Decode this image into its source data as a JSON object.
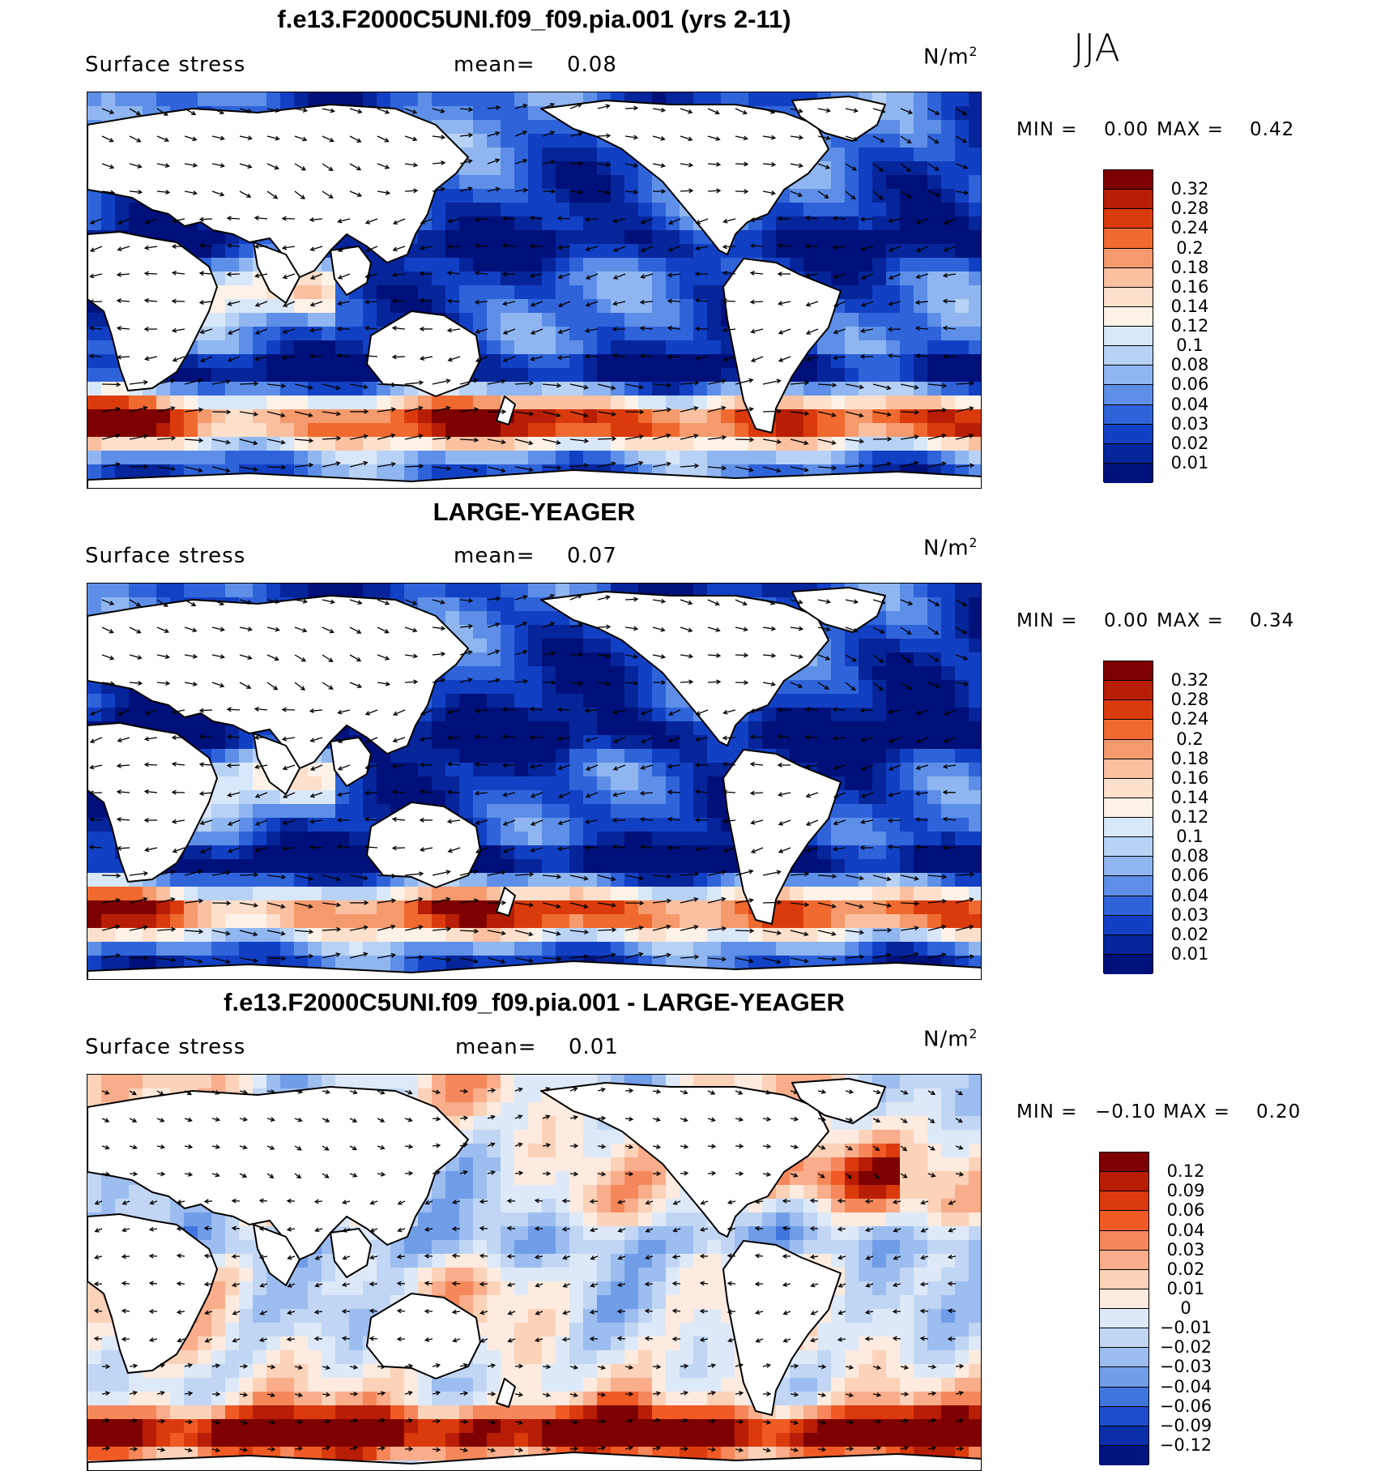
{
  "season": "JJA",
  "panels": [
    {
      "id": "top",
      "title": "f.e13.F2000C5UNI.f09_f09.pia.001 (yrs 2-11)",
      "variable": "Surface stress",
      "mean_label": "mean=",
      "mean_value": "0.08",
      "units_base": "N/m",
      "units_exp": "2",
      "min_label": "MIN =",
      "min_value": "0.00",
      "max_label": "MAX =",
      "max_value": "0.42",
      "colorbar": {
        "labels": [
          "0.32",
          "0.28",
          "0.24",
          "0.2",
          "0.18",
          "0.16",
          "0.14",
          "0.12",
          "0.1",
          "0.08",
          "0.06",
          "0.04",
          "0.03",
          "0.02",
          "0.01"
        ],
        "colors": [
          "#7f0000",
          "#b81e05",
          "#db3b0c",
          "#f06a2f",
          "#f59a6c",
          "#fac0a0",
          "#fde0cc",
          "#fdf2e8",
          "#d8e8fa",
          "#b8d2f5",
          "#8fb6f0",
          "#5e8fe8",
          "#2f63da",
          "#1240c4",
          "#06259a",
          "#00107a"
        ]
      },
      "map_style": "model"
    },
    {
      "id": "middle",
      "title": "LARGE-YEAGER",
      "variable": "Surface stress",
      "mean_label": "mean=",
      "mean_value": "0.07",
      "units_base": "N/m",
      "units_exp": "2",
      "min_label": "MIN =",
      "min_value": "0.00",
      "max_label": "MAX =",
      "max_value": "0.34",
      "colorbar": {
        "labels": [
          "0.32",
          "0.28",
          "0.24",
          "0.2",
          "0.18",
          "0.16",
          "0.14",
          "0.12",
          "0.1",
          "0.08",
          "0.06",
          "0.04",
          "0.03",
          "0.02",
          "0.01"
        ],
        "colors": [
          "#7f0000",
          "#b81e05",
          "#db3b0c",
          "#f06a2f",
          "#f59a6c",
          "#fac0a0",
          "#fde0cc",
          "#fdf2e8",
          "#d8e8fa",
          "#b8d2f5",
          "#8fb6f0",
          "#5e8fe8",
          "#2f63da",
          "#1240c4",
          "#06259a",
          "#00107a"
        ]
      },
      "map_style": "obs"
    },
    {
      "id": "bottom",
      "title": "f.e13.F2000C5UNI.f09_f09.pia.001 - LARGE-YEAGER",
      "variable": "Surface stress",
      "mean_label": "mean=",
      "mean_value": "0.01",
      "units_base": "N/m",
      "units_exp": "2",
      "min_label": "MIN =",
      "min_value": "−0.10",
      "max_label": "MAX =",
      "max_value": "0.20",
      "colorbar": {
        "labels": [
          "0.12",
          "0.09",
          "0.06",
          "0.04",
          "0.03",
          "0.02",
          "0.01",
          "0",
          "−0.01",
          "−0.02",
          "−0.03",
          "−0.04",
          "−0.06",
          "−0.09",
          "−0.12"
        ],
        "colors": [
          "#7f0000",
          "#b81e05",
          "#db3b0c",
          "#f05a25",
          "#f5875a",
          "#f9ad8a",
          "#fcd2b8",
          "#fdebdf",
          "#dde9f8",
          "#c0d6f4",
          "#9cbdf0",
          "#709de8",
          "#4075de",
          "#1d4ccc",
          "#0a2fa8",
          "#001580"
        ]
      },
      "map_style": "diff"
    }
  ]
}
